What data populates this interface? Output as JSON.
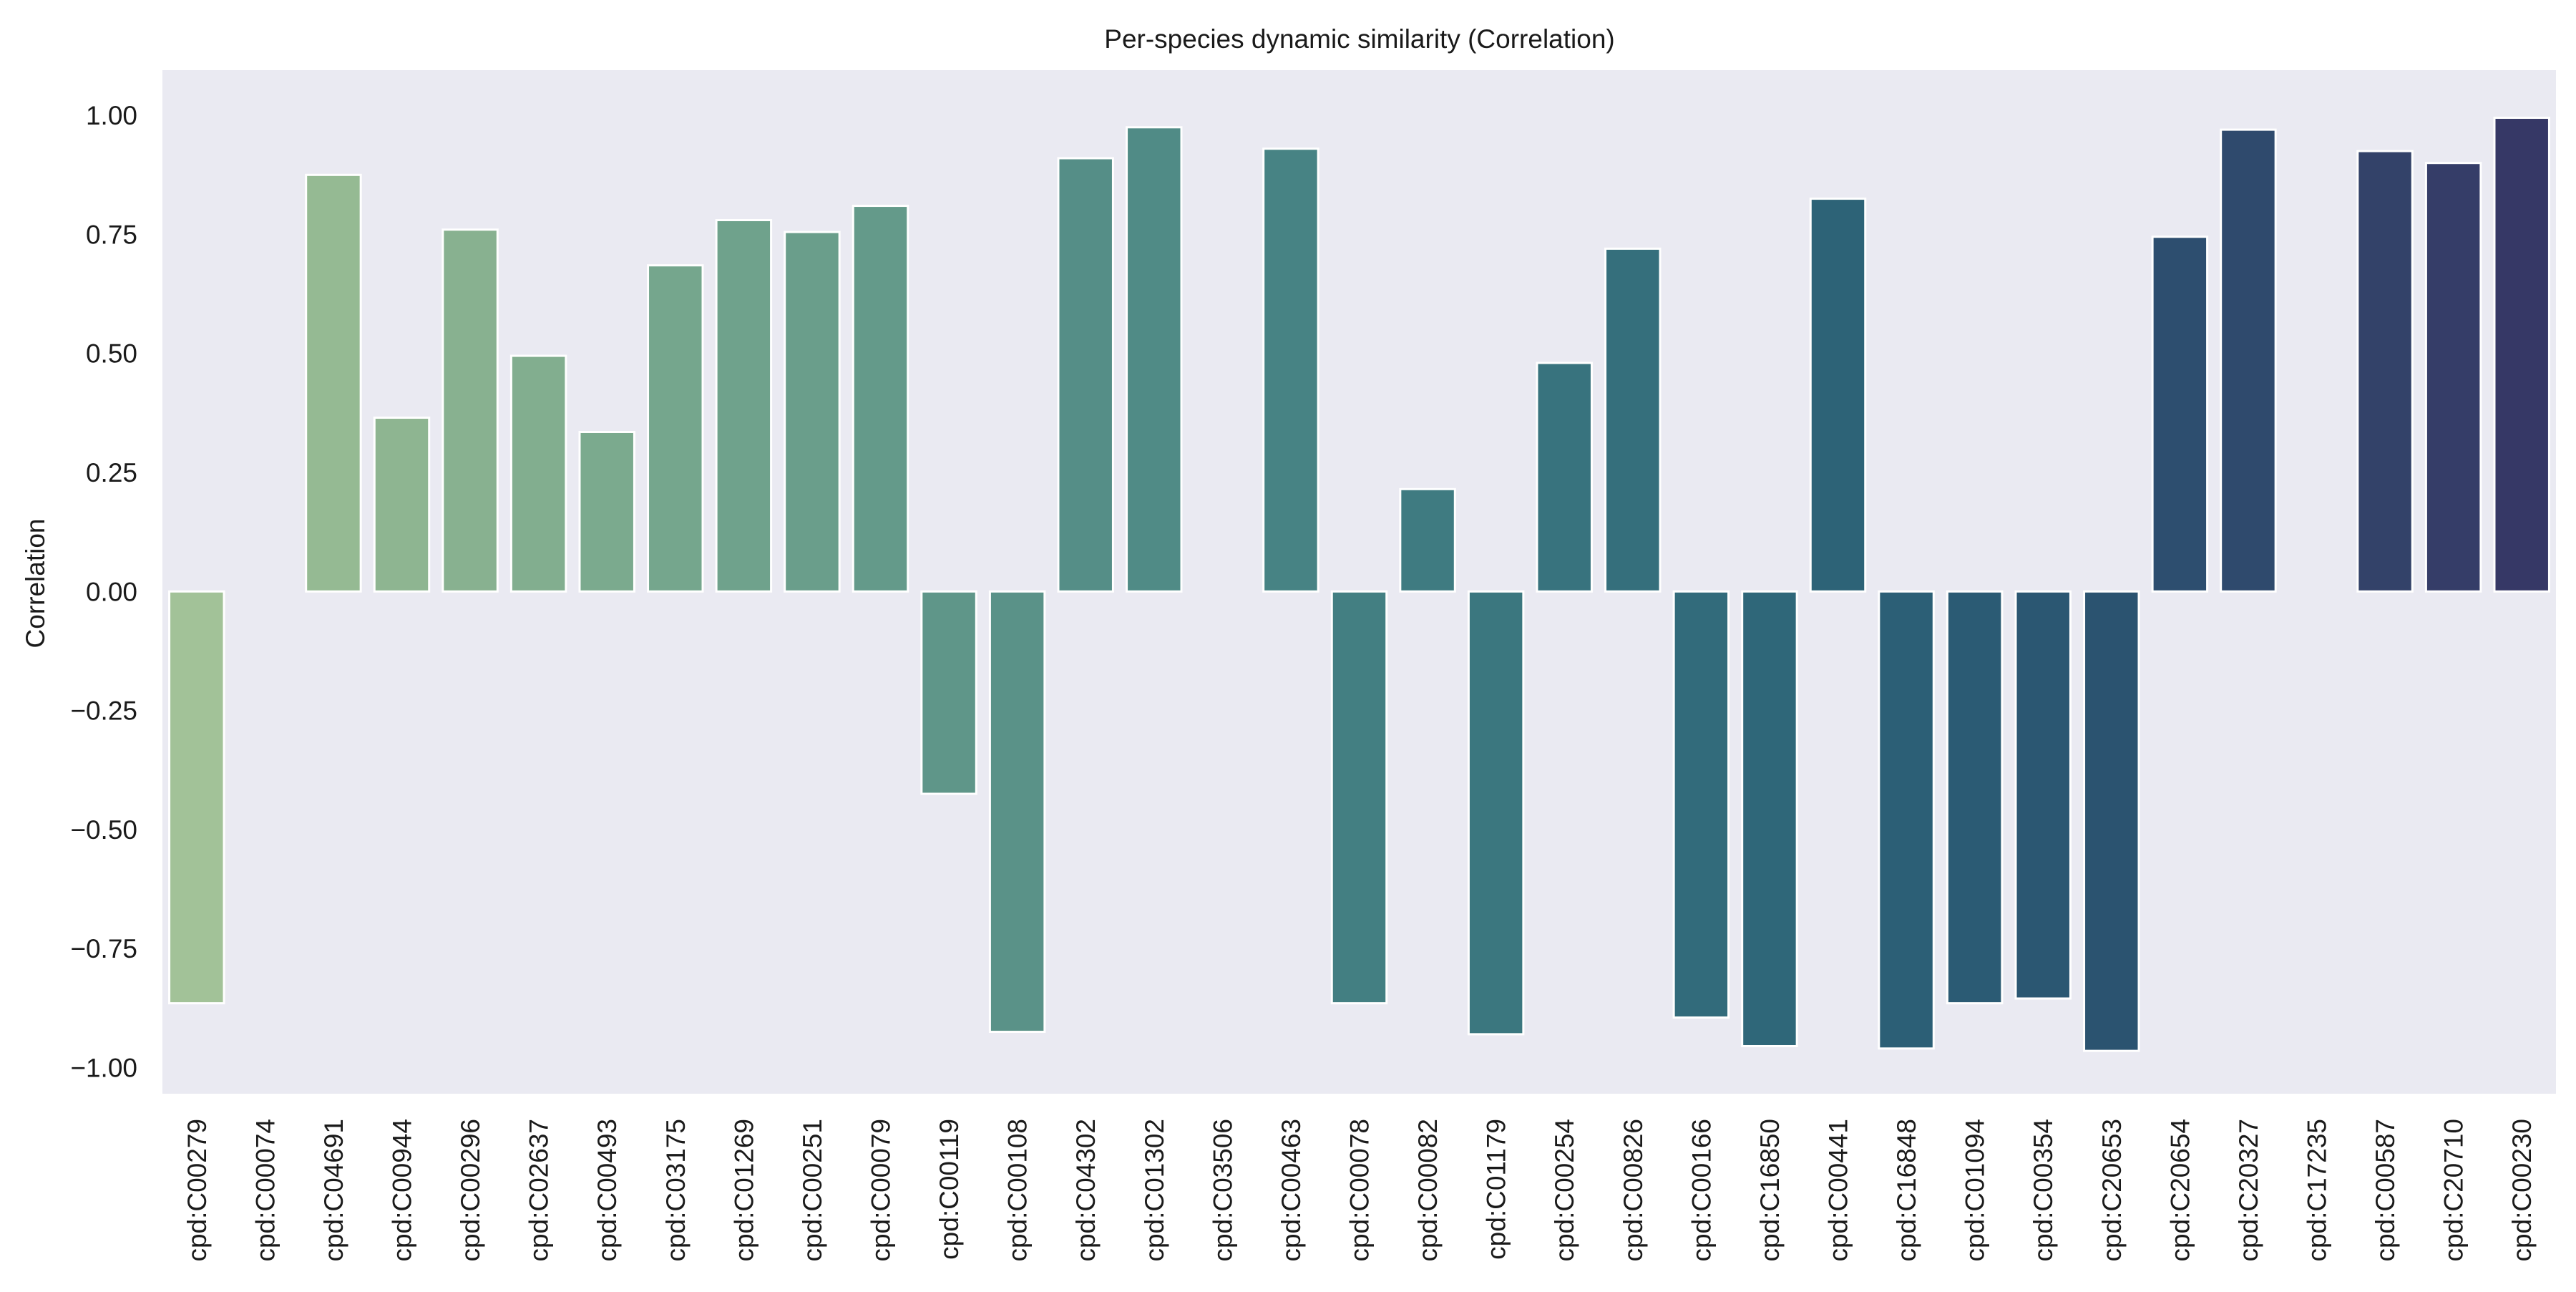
{
  "chart_data": {
    "type": "bar",
    "title": "Per-species dynamic similarity (Correlation)",
    "xlabel": "",
    "ylabel": "Correlation",
    "ylim": [
      -1.055,
      1.095
    ],
    "yticks": [
      1.0,
      0.75,
      0.5,
      0.25,
      0.0,
      -0.25,
      -0.5,
      -0.75,
      -1.0
    ],
    "ytick_labels": [
      "1.00",
      "0.75",
      "0.50",
      "0.25",
      "0.00",
      "−0.25",
      "−0.50",
      "−0.75",
      "−1.00"
    ],
    "grid": false,
    "categories": [
      "cpd:C00279",
      "cpd:C00074",
      "cpd:C04691",
      "cpd:C00944",
      "cpd:C00296",
      "cpd:C02637",
      "cpd:C00493",
      "cpd:C03175",
      "cpd:C01269",
      "cpd:C00251",
      "cpd:C00079",
      "cpd:C00119",
      "cpd:C00108",
      "cpd:C04302",
      "cpd:C01302",
      "cpd:C03506",
      "cpd:C00463",
      "cpd:C00078",
      "cpd:C00082",
      "cpd:C01179",
      "cpd:C00254",
      "cpd:C00826",
      "cpd:C00166",
      "cpd:C16850",
      "cpd:C00441",
      "cpd:C16848",
      "cpd:C01094",
      "cpd:C00354",
      "cpd:C20653",
      "cpd:C20654",
      "cpd:C20327",
      "cpd:C17235",
      "cpd:C00587",
      "cpd:C20710",
      "cpd:C00230"
    ],
    "values": [
      -0.865,
      0.0,
      0.875,
      0.365,
      0.76,
      0.495,
      0.335,
      0.685,
      0.78,
      0.755,
      0.81,
      -0.425,
      -0.925,
      0.91,
      0.975,
      0.0,
      0.93,
      -0.865,
      0.215,
      -0.93,
      0.48,
      0.72,
      -0.895,
      -0.955,
      0.825,
      -0.96,
      -0.865,
      -0.855,
      -0.965,
      0.745,
      0.97,
      0.0,
      0.925,
      0.9,
      0.995
    ],
    "colors": [
      "#a2c298",
      "#9bbe94",
      "#95ba93",
      "#8eb591",
      "#88b190",
      "#82ae8f",
      "#7baa8e",
      "#75a68d",
      "#6fa28c",
      "#6a9e8b",
      "#649a8a",
      "#5f9689",
      "#5a9288",
      "#558e87",
      "#508b86",
      "#4b8785",
      "#478384",
      "#437f82",
      "#3f7b81",
      "#3b777f",
      "#38737e",
      "#356f7c",
      "#326b7b",
      "#2f6779",
      "#2d6377",
      "#2c5f76",
      "#2b5b74",
      "#2b5772",
      "#2b5370",
      "#2d4e6f",
      "#2f4a6d",
      "#31466b",
      "#334269",
      "#353d68",
      "#363866"
    ],
    "plot_background": "#eaeaf2"
  }
}
